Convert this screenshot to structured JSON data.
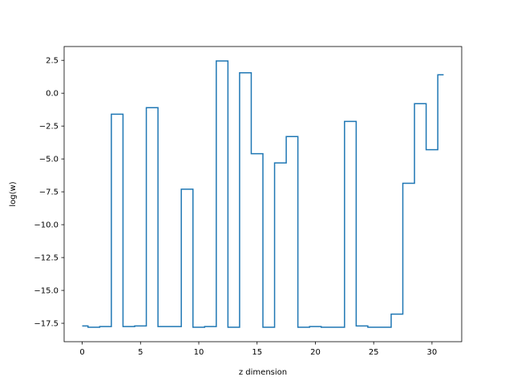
{
  "chart_data": {
    "type": "line",
    "drawstyle": "steps-mid",
    "title": "",
    "xlabel": "z dimension",
    "ylabel": "log(w)",
    "xlim": [
      -1.55,
      32.55
    ],
    "ylim": [
      -18.9,
      3.55
    ],
    "xticks": [
      0,
      5,
      10,
      15,
      20,
      25,
      30
    ],
    "yticks": [
      2.5,
      0.0,
      -2.5,
      -5.0,
      -7.5,
      -10.0,
      -12.5,
      -15.0,
      -17.5
    ],
    "ytick_labels": [
      "2.5",
      "0.0",
      "−2.5",
      "−5.0",
      "−7.5",
      "−10.0",
      "−12.5",
      "−15.0",
      "−17.5"
    ],
    "line_color": "#1f77b4",
    "grid": false,
    "x": [
      0,
      1,
      2,
      3,
      4,
      5,
      6,
      7,
      8,
      9,
      10,
      11,
      12,
      13,
      14,
      15,
      16,
      17,
      18,
      19,
      20,
      21,
      22,
      23,
      24,
      25,
      26,
      27,
      28,
      29,
      30,
      31
    ],
    "y": [
      -17.7,
      -17.8,
      -17.75,
      -1.6,
      -17.75,
      -17.7,
      -1.1,
      -17.75,
      -17.75,
      -7.3,
      -17.8,
      -17.75,
      2.45,
      -17.8,
      1.55,
      -4.6,
      -17.8,
      -5.3,
      -3.3,
      -17.8,
      -17.75,
      -17.8,
      -17.8,
      -2.15,
      -17.7,
      -17.8,
      -17.8,
      -16.8,
      -6.85,
      -0.8,
      -4.3,
      1.4
    ]
  }
}
